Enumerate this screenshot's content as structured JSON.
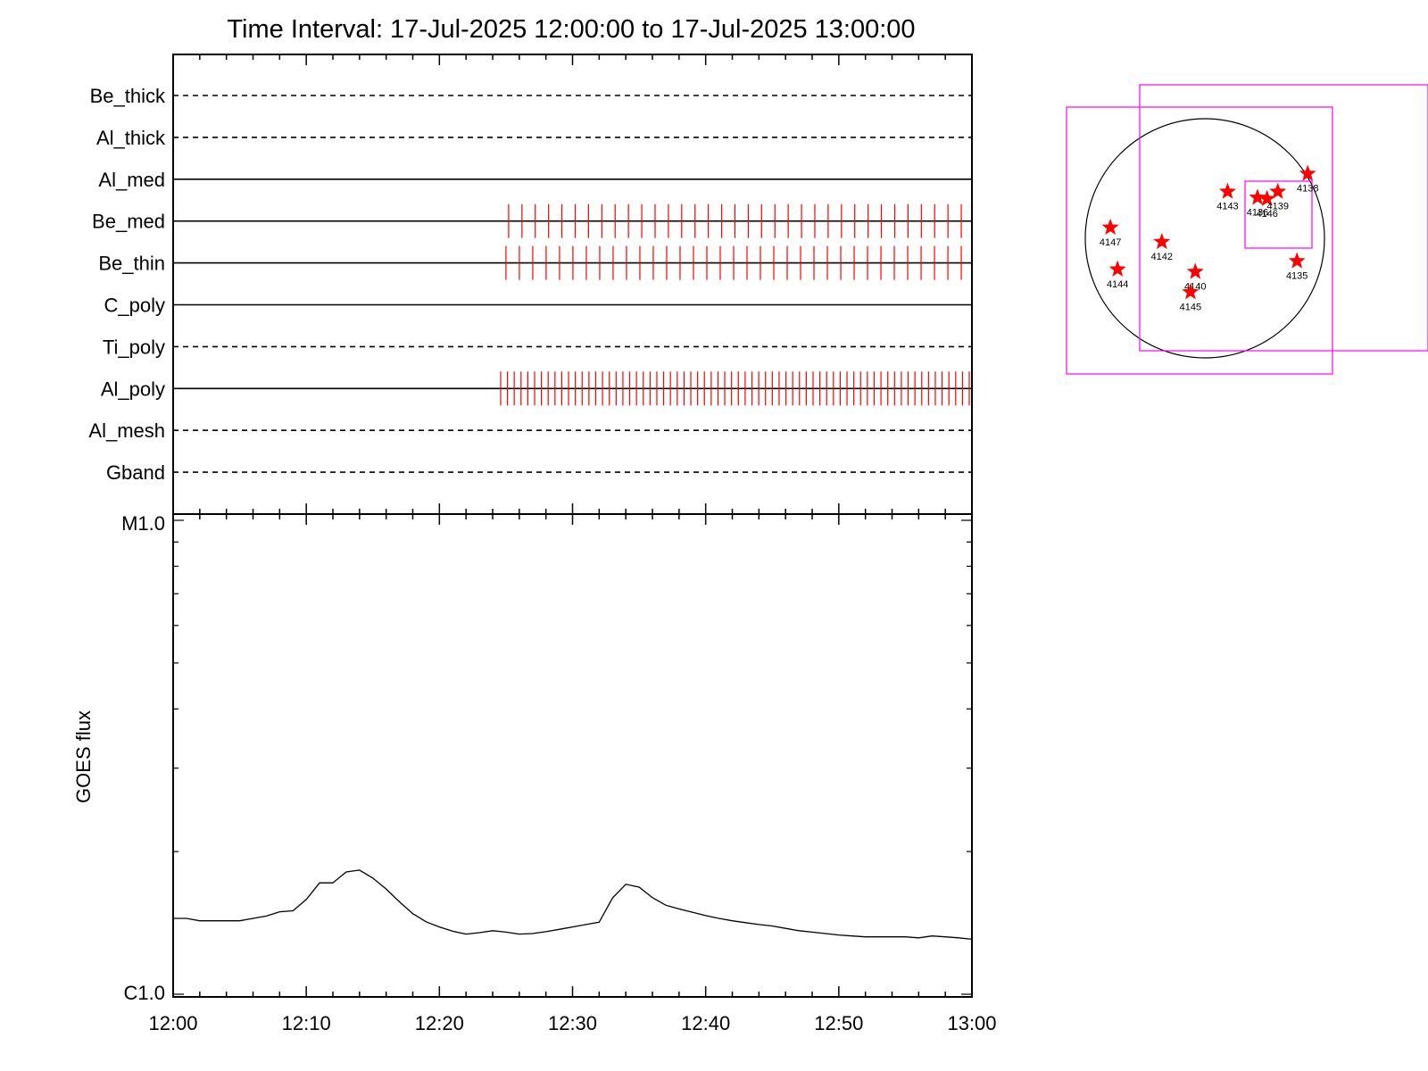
{
  "chart_data": [
    {
      "type": "timeline",
      "title": "Time Interval: 17-Jul-2025 12:00:00 to 17-Jul-2025 13:00:00",
      "filters": [
        {
          "name": "Be_thick",
          "style": "dashed",
          "ticks": null
        },
        {
          "name": "Al_thick",
          "style": "dashed",
          "ticks": null
        },
        {
          "name": "Al_med",
          "style": "solid",
          "ticks": null
        },
        {
          "name": "Be_med",
          "style": "solid",
          "ticks": {
            "start_min": 25.2,
            "end_min": 59.2,
            "count": 35
          }
        },
        {
          "name": "Be_thin",
          "style": "solid",
          "ticks": {
            "start_min": 25.0,
            "end_min": 59.2,
            "count": 35
          }
        },
        {
          "name": "C_poly",
          "style": "solid",
          "ticks": null
        },
        {
          "name": "Ti_poly",
          "style": "dashed",
          "ticks": null
        },
        {
          "name": "Al_poly",
          "style": "solid",
          "ticks": {
            "start_min": 24.6,
            "end_min": 59.8,
            "count": 70
          }
        },
        {
          "name": "Al_mesh",
          "style": "dashed",
          "ticks": null
        },
        {
          "name": "Gband",
          "style": "dashed",
          "ticks": null
        }
      ],
      "tick_color": "#ff0000"
    },
    {
      "type": "line",
      "ylabel": "GOES flux",
      "y_tick_labels": [
        "M1.0",
        "C1.0"
      ],
      "x_tick_labels": [
        "12:00",
        "12:10",
        "12:20",
        "12:30",
        "12:40",
        "12:50",
        "13:00"
      ],
      "x_range_min": [
        0,
        60
      ],
      "y_log_range": [
        -6,
        -5
      ],
      "series": [
        {
          "x_min": [
            0,
            1,
            2,
            3,
            4,
            5,
            6,
            7,
            8,
            9,
            10,
            11,
            12,
            13,
            14,
            15,
            16,
            17,
            18,
            19,
            20,
            21,
            22,
            23,
            24,
            25,
            26,
            27,
            28,
            29,
            30,
            31,
            32,
            33,
            34,
            35,
            36,
            37,
            38,
            39,
            40,
            41,
            42,
            43,
            44,
            45,
            46,
            47,
            48,
            49,
            50,
            51,
            52,
            53,
            54,
            55,
            56,
            57,
            58,
            59,
            60
          ],
          "log_flux": [
            -5.84,
            -5.84,
            -5.845,
            -5.845,
            -5.845,
            -5.845,
            -5.84,
            -5.835,
            -5.826,
            -5.824,
            -5.8,
            -5.765,
            -5.765,
            -5.742,
            -5.738,
            -5.755,
            -5.778,
            -5.805,
            -5.83,
            -5.847,
            -5.858,
            -5.867,
            -5.873,
            -5.87,
            -5.866,
            -5.869,
            -5.873,
            -5.872,
            -5.868,
            -5.863,
            -5.858,
            -5.853,
            -5.848,
            -5.797,
            -5.768,
            -5.774,
            -5.796,
            -5.812,
            -5.82,
            -5.827,
            -5.834,
            -5.84,
            -5.845,
            -5.849,
            -5.853,
            -5.856,
            -5.861,
            -5.866,
            -5.869,
            -5.872,
            -5.875,
            -5.877,
            -5.879,
            -5.879,
            -5.879,
            -5.879,
            -5.881,
            -5.877,
            -5.879,
            -5.881,
            -5.884
          ]
        }
      ]
    },
    {
      "type": "scatter",
      "subtype": "solar-disk-map",
      "points": [
        {
          "label": "4143",
          "x": 0.19,
          "y": 0.39
        },
        {
          "label": "4136",
          "x": 0.44,
          "y": 0.34
        },
        {
          "label": "4146",
          "x": 0.52,
          "y": 0.33
        },
        {
          "label": "4139",
          "x": 0.61,
          "y": 0.39
        },
        {
          "label": "4138",
          "x": 0.86,
          "y": 0.54
        },
        {
          "label": "4147",
          "x": -0.79,
          "y": 0.09
        },
        {
          "label": "4142",
          "x": -0.36,
          "y": -0.03
        },
        {
          "label": "4135",
          "x": 0.77,
          "y": -0.19
        },
        {
          "label": "4144",
          "x": -0.73,
          "y": -0.26
        },
        {
          "label": "4140",
          "x": -0.08,
          "y": -0.28
        },
        {
          "label": "4145",
          "x": -0.12,
          "y": -0.45
        }
      ],
      "marker_color": "#ff0000",
      "fov_color": "#ff00ff"
    }
  ]
}
